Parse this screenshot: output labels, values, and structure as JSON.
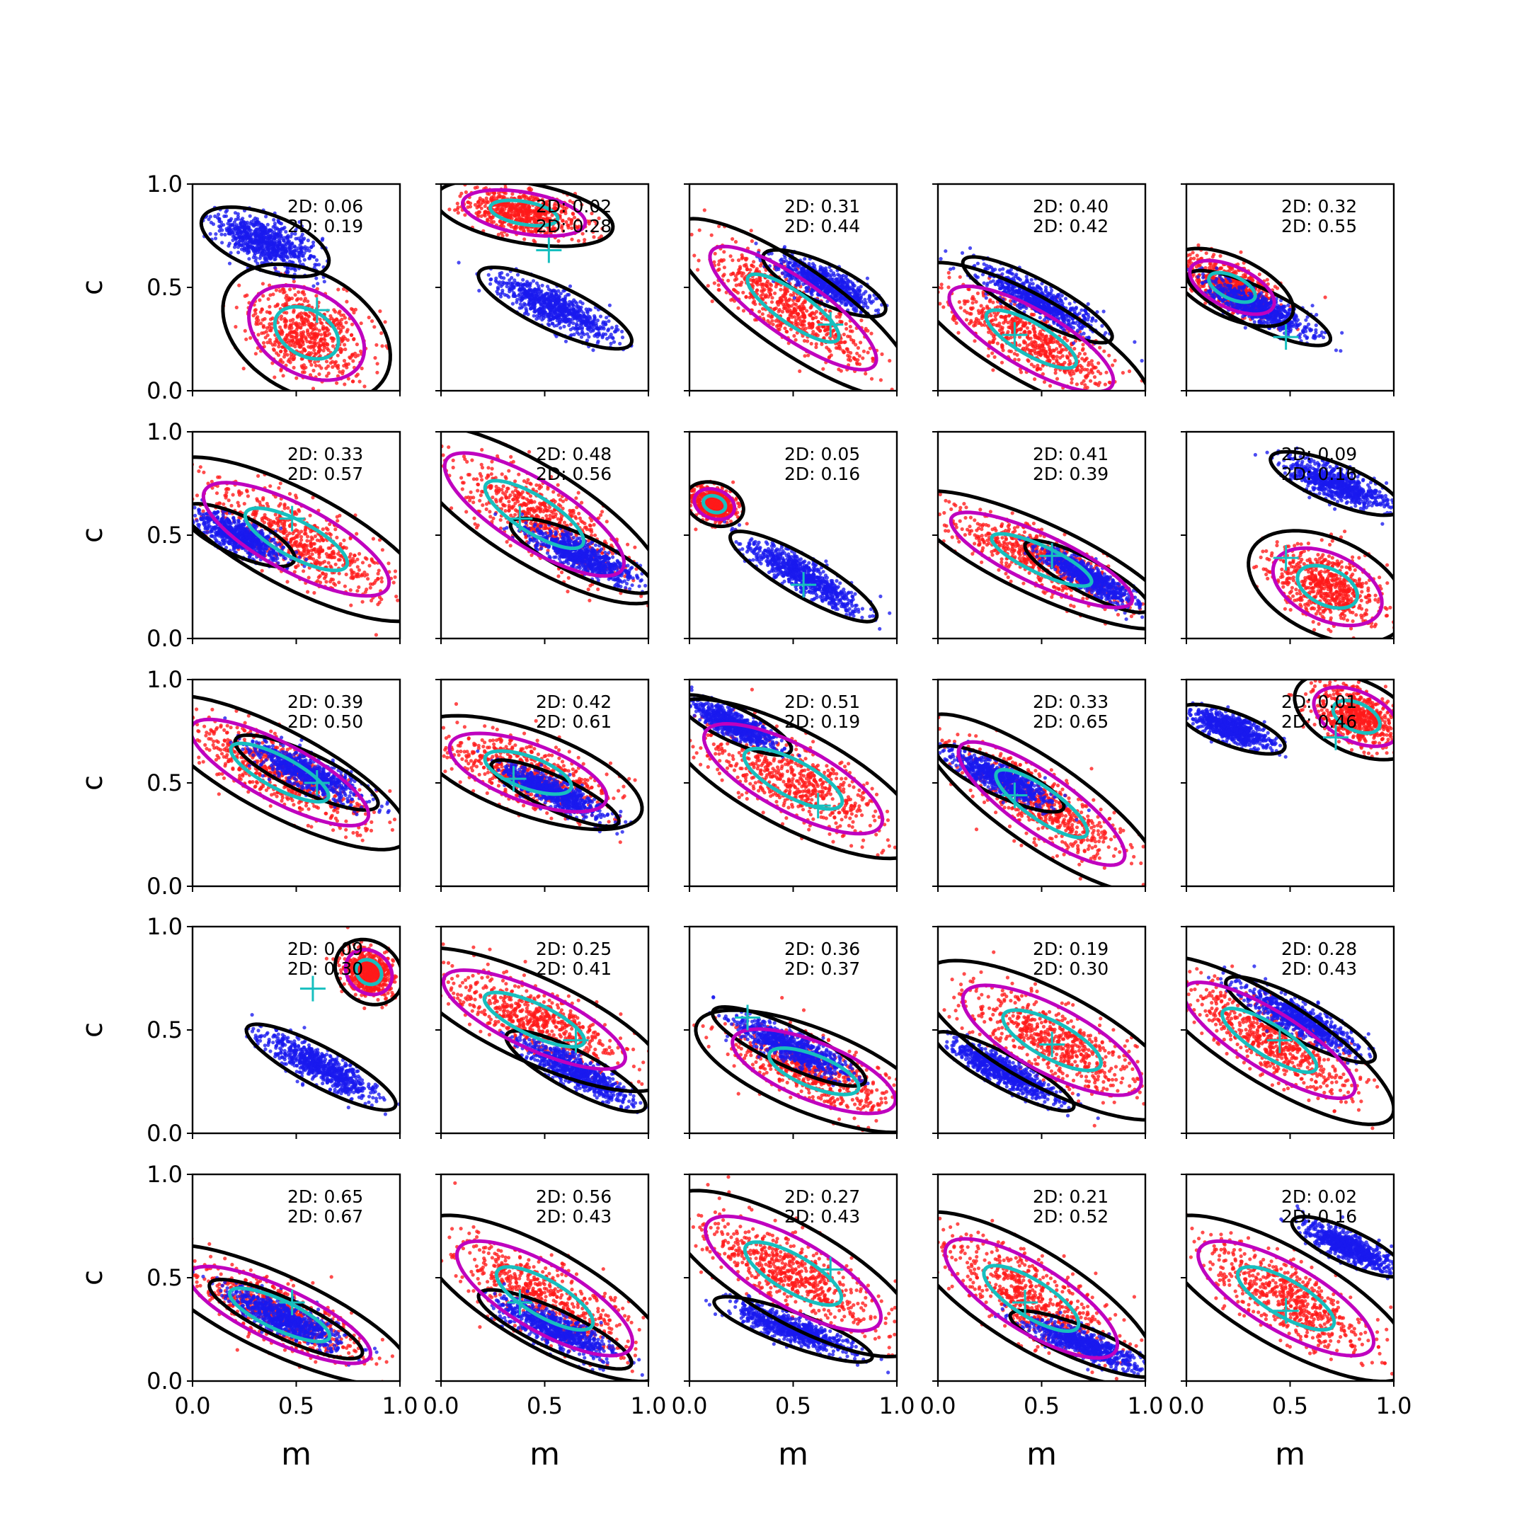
{
  "figure": {
    "xlabel": "m",
    "ylabel": "c",
    "xticks": [
      "0.0",
      "0.5",
      "1.0"
    ],
    "yticks": [
      "0.0",
      "0.5",
      "1.0"
    ]
  },
  "colors": {
    "blue": "#1a1aee",
    "red": "#ff1a1a",
    "black": "#000000",
    "magenta": "#bf00bf",
    "cyan": "#17bfbf"
  },
  "chart_data": [
    {
      "row": 0,
      "col": 0,
      "type": "scatter",
      "xlim": [
        0,
        1
      ],
      "ylim": [
        0,
        1
      ],
      "annotations": [
        "2D: 0.06",
        "2D: 0.19"
      ],
      "marker": [
        0.6,
        0.39
      ],
      "blue": {
        "cx": 0.35,
        "cy": 0.72,
        "sx": 0.24,
        "sy": 0.1,
        "angle": -20
      },
      "red": {
        "cx": 0.55,
        "cy": 0.28,
        "sx": 0.3,
        "sy": 0.2,
        "angle": -30
      }
    },
    {
      "row": 0,
      "col": 1,
      "type": "scatter",
      "xlim": [
        0,
        1
      ],
      "ylim": [
        0,
        1
      ],
      "annotations": [
        "2D: 0.02",
        "2D: 0.28"
      ],
      "marker": [
        0.52,
        0.68
      ],
      "blue": {
        "cx": 0.55,
        "cy": 0.4,
        "sx": 0.3,
        "sy": 0.08,
        "angle": -25
      },
      "red": {
        "cx": 0.4,
        "cy": 0.86,
        "sx": 0.3,
        "sy": 0.1,
        "angle": -10
      }
    },
    {
      "row": 0,
      "col": 2,
      "type": "scatter",
      "xlim": [
        0,
        1
      ],
      "ylim": [
        0,
        1
      ],
      "annotations": [
        "2D: 0.31",
        "2D: 0.44"
      ],
      "marker": [
        0.68,
        0.32
      ],
      "blue": {
        "cx": 0.65,
        "cy": 0.52,
        "sx": 0.24,
        "sy": 0.07,
        "angle": -25
      },
      "red": {
        "cx": 0.5,
        "cy": 0.4,
        "sx": 0.48,
        "sy": 0.14,
        "angle": -35
      }
    },
    {
      "row": 0,
      "col": 3,
      "type": "scatter",
      "xlim": [
        0,
        1
      ],
      "ylim": [
        0,
        1
      ],
      "annotations": [
        "2D: 0.40",
        "2D: 0.42"
      ],
      "marker": [
        0.37,
        0.27
      ],
      "blue": {
        "cx": 0.48,
        "cy": 0.44,
        "sx": 0.3,
        "sy": 0.07,
        "angle": -28
      },
      "red": {
        "cx": 0.45,
        "cy": 0.25,
        "sx": 0.45,
        "sy": 0.14,
        "angle": -30
      }
    },
    {
      "row": 0,
      "col": 4,
      "type": "scatter",
      "xlim": [
        0,
        1
      ],
      "ylim": [
        0,
        1
      ],
      "annotations": [
        "2D: 0.32",
        "2D: 0.55"
      ],
      "marker": [
        0.48,
        0.26
      ],
      "blue": {
        "cx": 0.35,
        "cy": 0.4,
        "sx": 0.28,
        "sy": 0.07,
        "angle": -25
      },
      "red": {
        "cx": 0.22,
        "cy": 0.5,
        "sx": 0.22,
        "sy": 0.1,
        "angle": -25
      }
    },
    {
      "row": 1,
      "col": 0,
      "type": "scatter",
      "xlim": [
        0,
        1
      ],
      "ylim": [
        0,
        1
      ],
      "annotations": [
        "2D: 0.33",
        "2D: 0.57"
      ],
      "marker": [
        0.48,
        0.58
      ],
      "blue": {
        "cx": 0.22,
        "cy": 0.5,
        "sx": 0.22,
        "sy": 0.07,
        "angle": -25
      },
      "red": {
        "cx": 0.5,
        "cy": 0.48,
        "sx": 0.5,
        "sy": 0.16,
        "angle": -28
      }
    },
    {
      "row": 1,
      "col": 1,
      "type": "scatter",
      "xlim": [
        0,
        1
      ],
      "ylim": [
        0,
        1
      ],
      "annotations": [
        "2D: 0.48",
        "2D: 0.56"
      ],
      "marker": [
        0.38,
        0.58
      ],
      "blue": {
        "cx": 0.68,
        "cy": 0.4,
        "sx": 0.28,
        "sy": 0.07,
        "angle": -25
      },
      "red": {
        "cx": 0.45,
        "cy": 0.6,
        "sx": 0.5,
        "sy": 0.16,
        "angle": -32
      }
    },
    {
      "row": 1,
      "col": 2,
      "type": "scatter",
      "xlim": [
        0,
        1
      ],
      "ylim": [
        0,
        1
      ],
      "annotations": [
        "2D: 0.05",
        "2D: 0.16"
      ],
      "marker": [
        0.55,
        0.26
      ],
      "blue": {
        "cx": 0.55,
        "cy": 0.3,
        "sx": 0.3,
        "sy": 0.07,
        "angle": -30
      },
      "red": {
        "cx": 0.12,
        "cy": 0.65,
        "sx": 0.1,
        "sy": 0.07,
        "angle": -20
      }
    },
    {
      "row": 1,
      "col": 3,
      "type": "scatter",
      "xlim": [
        0,
        1
      ],
      "ylim": [
        0,
        1
      ],
      "annotations": [
        "2D: 0.41",
        "2D: 0.39"
      ],
      "marker": [
        0.55,
        0.4
      ],
      "blue": {
        "cx": 0.72,
        "cy": 0.3,
        "sx": 0.25,
        "sy": 0.06,
        "angle": -28
      },
      "red": {
        "cx": 0.5,
        "cy": 0.38,
        "sx": 0.48,
        "sy": 0.12,
        "angle": -25
      }
    },
    {
      "row": 1,
      "col": 4,
      "type": "scatter",
      "xlim": [
        0,
        1
      ],
      "ylim": [
        0,
        1
      ],
      "annotations": [
        "2D: 0.09",
        "2D: 0.16"
      ],
      "marker": [
        0.48,
        0.39
      ],
      "blue": {
        "cx": 0.72,
        "cy": 0.75,
        "sx": 0.25,
        "sy": 0.07,
        "angle": -22
      },
      "red": {
        "cx": 0.68,
        "cy": 0.25,
        "sx": 0.28,
        "sy": 0.16,
        "angle": -25
      }
    },
    {
      "row": 2,
      "col": 0,
      "type": "scatter",
      "xlim": [
        0,
        1
      ],
      "ylim": [
        0,
        1
      ],
      "annotations": [
        "2D: 0.39",
        "2D: 0.50"
      ],
      "marker": [
        0.6,
        0.5
      ],
      "blue": {
        "cx": 0.55,
        "cy": 0.55,
        "sx": 0.28,
        "sy": 0.07,
        "angle": -25
      },
      "red": {
        "cx": 0.42,
        "cy": 0.55,
        "sx": 0.48,
        "sy": 0.14,
        "angle": -28
      }
    },
    {
      "row": 2,
      "col": 1,
      "type": "scatter",
      "xlim": [
        0,
        1
      ],
      "ylim": [
        0,
        1
      ],
      "annotations": [
        "2D: 0.42",
        "2D: 0.61"
      ],
      "marker": [
        0.35,
        0.52
      ],
      "blue": {
        "cx": 0.55,
        "cy": 0.45,
        "sx": 0.25,
        "sy": 0.06,
        "angle": -25
      },
      "red": {
        "cx": 0.42,
        "cy": 0.55,
        "sx": 0.4,
        "sy": 0.14,
        "angle": -20
      }
    },
    {
      "row": 2,
      "col": 2,
      "type": "scatter",
      "xlim": [
        0,
        1
      ],
      "ylim": [
        0,
        1
      ],
      "annotations": [
        "2D: 0.51",
        "2D: 0.19"
      ],
      "marker": [
        0.62,
        0.39
      ],
      "blue": {
        "cx": 0.22,
        "cy": 0.78,
        "sx": 0.22,
        "sy": 0.06,
        "angle": -25
      },
      "red": {
        "cx": 0.5,
        "cy": 0.52,
        "sx": 0.48,
        "sy": 0.16,
        "angle": -28
      }
    },
    {
      "row": 2,
      "col": 3,
      "type": "scatter",
      "xlim": [
        0,
        1
      ],
      "ylim": [
        0,
        1
      ],
      "annotations": [
        "2D: 0.33",
        "2D: 0.65"
      ],
      "marker": [
        0.37,
        0.44
      ],
      "blue": {
        "cx": 0.3,
        "cy": 0.52,
        "sx": 0.25,
        "sy": 0.06,
        "angle": -25
      },
      "red": {
        "cx": 0.5,
        "cy": 0.4,
        "sx": 0.48,
        "sy": 0.14,
        "angle": -35
      }
    },
    {
      "row": 2,
      "col": 4,
      "type": "scatter",
      "xlim": [
        0,
        1
      ],
      "ylim": [
        0,
        1
      ],
      "annotations": [
        "2D: 0.01",
        "2D: 0.46"
      ],
      "marker": [
        0.72,
        0.72
      ],
      "blue": {
        "cx": 0.22,
        "cy": 0.76,
        "sx": 0.2,
        "sy": 0.06,
        "angle": -20
      },
      "red": {
        "cx": 0.82,
        "cy": 0.82,
        "sx": 0.22,
        "sy": 0.12,
        "angle": -25
      }
    },
    {
      "row": 3,
      "col": 0,
      "type": "scatter",
      "xlim": [
        0,
        1
      ],
      "ylim": [
        0,
        1
      ],
      "annotations": [
        "2D: 0.09",
        "2D: 0.30"
      ],
      "marker": [
        0.58,
        0.7
      ],
      "blue": {
        "cx": 0.62,
        "cy": 0.32,
        "sx": 0.3,
        "sy": 0.07,
        "angle": -28
      },
      "red": {
        "cx": 0.85,
        "cy": 0.78,
        "sx": 0.12,
        "sy": 0.1,
        "angle": -40
      }
    },
    {
      "row": 3,
      "col": 1,
      "type": "scatter",
      "xlim": [
        0,
        1
      ],
      "ylim": [
        0,
        1
      ],
      "annotations": [
        "2D: 0.25",
        "2D: 0.41"
      ],
      "marker": [
        0.65,
        0.45
      ],
      "blue": {
        "cx": 0.65,
        "cy": 0.3,
        "sx": 0.28,
        "sy": 0.07,
        "angle": -28
      },
      "red": {
        "cx": 0.45,
        "cy": 0.55,
        "sx": 0.48,
        "sy": 0.14,
        "angle": -25
      }
    },
    {
      "row": 3,
      "col": 2,
      "type": "scatter",
      "xlim": [
        0,
        1
      ],
      "ylim": [
        0,
        1
      ],
      "annotations": [
        "2D: 0.36",
        "2D: 0.37"
      ],
      "marker": [
        0.28,
        0.56
      ],
      "blue": {
        "cx": 0.48,
        "cy": 0.42,
        "sx": 0.3,
        "sy": 0.07,
        "angle": -25
      },
      "red": {
        "cx": 0.6,
        "cy": 0.3,
        "sx": 0.42,
        "sy": 0.14,
        "angle": -22
      }
    },
    {
      "row": 3,
      "col": 3,
      "type": "scatter",
      "xlim": [
        0,
        1
      ],
      "ylim": [
        0,
        1
      ],
      "annotations": [
        "2D: 0.19",
        "2D: 0.30"
      ],
      "marker": [
        0.55,
        0.43
      ],
      "blue": {
        "cx": 0.32,
        "cy": 0.3,
        "sx": 0.28,
        "sy": 0.06,
        "angle": -28
      },
      "red": {
        "cx": 0.55,
        "cy": 0.45,
        "sx": 0.48,
        "sy": 0.16,
        "angle": -28
      }
    },
    {
      "row": 3,
      "col": 4,
      "type": "scatter",
      "xlim": [
        0,
        1
      ],
      "ylim": [
        0,
        1
      ],
      "annotations": [
        "2D: 0.28",
        "2D: 0.43"
      ],
      "marker": [
        0.45,
        0.45
      ],
      "blue": {
        "cx": 0.55,
        "cy": 0.55,
        "sx": 0.3,
        "sy": 0.07,
        "angle": -28
      },
      "red": {
        "cx": 0.4,
        "cy": 0.45,
        "sx": 0.48,
        "sy": 0.14,
        "angle": -32
      }
    },
    {
      "row": 4,
      "col": 0,
      "type": "scatter",
      "xlim": [
        0,
        1
      ],
      "ylim": [
        0,
        1
      ],
      "annotations": [
        "2D: 0.65",
        "2D: 0.67"
      ],
      "marker": [
        0.48,
        0.38
      ],
      "blue": {
        "cx": 0.45,
        "cy": 0.3,
        "sx": 0.3,
        "sy": 0.07,
        "angle": -25
      },
      "red": {
        "cx": 0.42,
        "cy": 0.32,
        "sx": 0.48,
        "sy": 0.13,
        "angle": -25
      }
    },
    {
      "row": 4,
      "col": 1,
      "type": "scatter",
      "xlim": [
        0,
        1
      ],
      "ylim": [
        0,
        1
      ],
      "annotations": [
        "2D: 0.56",
        "2D: 0.43"
      ],
      "marker": [
        0.38,
        0.38
      ],
      "blue": {
        "cx": 0.55,
        "cy": 0.25,
        "sx": 0.3,
        "sy": 0.07,
        "angle": -25
      },
      "red": {
        "cx": 0.5,
        "cy": 0.4,
        "sx": 0.48,
        "sy": 0.16,
        "angle": -30
      }
    },
    {
      "row": 4,
      "col": 2,
      "type": "scatter",
      "xlim": [
        0,
        1
      ],
      "ylim": [
        0,
        1
      ],
      "annotations": [
        "2D: 0.27",
        "2D: 0.43"
      ],
      "marker": [
        0.68,
        0.54
      ],
      "blue": {
        "cx": 0.5,
        "cy": 0.25,
        "sx": 0.3,
        "sy": 0.06,
        "angle": -20
      },
      "red": {
        "cx": 0.5,
        "cy": 0.52,
        "sx": 0.48,
        "sy": 0.16,
        "angle": -30
      }
    },
    {
      "row": 4,
      "col": 3,
      "type": "scatter",
      "xlim": [
        0,
        1
      ],
      "ylim": [
        0,
        1
      ],
      "annotations": [
        "2D: 0.21",
        "2D: 0.52"
      ],
      "marker": [
        0.42,
        0.38
      ],
      "blue": {
        "cx": 0.7,
        "cy": 0.18,
        "sx": 0.28,
        "sy": 0.06,
        "angle": -22
      },
      "red": {
        "cx": 0.45,
        "cy": 0.4,
        "sx": 0.48,
        "sy": 0.16,
        "angle": -32
      }
    },
    {
      "row": 4,
      "col": 4,
      "type": "scatter",
      "xlim": [
        0,
        1
      ],
      "ylim": [
        0,
        1
      ],
      "annotations": [
        "2D: 0.02",
        "2D: 0.16"
      ],
      "marker": [
        0.48,
        0.34
      ],
      "blue": {
        "cx": 0.78,
        "cy": 0.65,
        "sx": 0.22,
        "sy": 0.06,
        "angle": -25
      },
      "red": {
        "cx": 0.48,
        "cy": 0.4,
        "sx": 0.48,
        "sy": 0.16,
        "angle": -30
      }
    }
  ]
}
